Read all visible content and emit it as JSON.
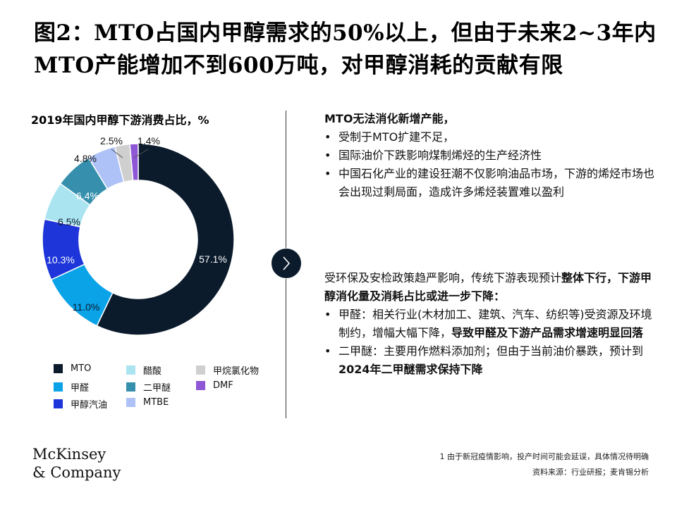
{
  "title": "图2：MTO占国内甲醇需求的50%以上，但由于未来2~3年内MTO产能增加不到600万吨，对甲醇消耗的贡献有限",
  "chart_data": {
    "type": "pie",
    "title": "2019年国内甲醇下游消费占比，%",
    "donut": true,
    "slices": [
      {
        "name": "MTO",
        "value": 57.1,
        "label": "57.1%",
        "color": "#0b1b2c"
      },
      {
        "name": "甲醛",
        "value": 11.0,
        "label": "11.0%",
        "color": "#0aa3e8"
      },
      {
        "name": "甲醇汽油",
        "value": 10.3,
        "label": "10.3%",
        "color": "#1d35d9"
      },
      {
        "name": "醋酸",
        "value": 6.5,
        "label": "6.5%",
        "color": "#a9e4f0"
      },
      {
        "name": "二甲醚",
        "value": 6.4,
        "label": "6.4%",
        "color": "#3690ad"
      },
      {
        "name": "MTBE",
        "value": 4.8,
        "label": "4.8%",
        "color": "#aec2f8"
      },
      {
        "name": "甲烷氯化物",
        "value": 2.5,
        "label": "2.5%",
        "color": "#cfcfcf"
      },
      {
        "name": "DMF",
        "value": 1.4,
        "label": "1.4%",
        "color": "#8e57d6"
      }
    ],
    "legend": [
      {
        "name": "MTO",
        "color": "#0b1b2c"
      },
      {
        "name": "醋酸",
        "color": "#a9e4f0"
      },
      {
        "name": "甲烷氯化物",
        "color": "#cfcfcf"
      },
      {
        "name": "甲醛",
        "color": "#0aa3e8"
      },
      {
        "name": "二甲醚",
        "color": "#3690ad"
      },
      {
        "name": "DMF",
        "color": "#8e57d6"
      },
      {
        "name": "甲醇汽油",
        "color": "#1d35d9"
      },
      {
        "name": "MTBE",
        "color": "#aec2f8"
      }
    ],
    "legend_placement": "bottom"
  },
  "right": {
    "block1": {
      "heading": "MTO无法消化新增产能，",
      "bullets": [
        "受制于MTO扩建不足，",
        "国际油价下跌影响煤制烯烃的生产经济性",
        "中国石化产业的建设狂潮不仅影响油品市场，下游的烯烃市场也会出现过剩局面，造成许多烯烃装置难以盈利"
      ]
    },
    "block2": {
      "intro_plain": "受环保及安检政策趋严影响，传统下游表现预计",
      "intro_bold": "整体下行，下游甲醇消化量及消耗占比或进一步下降：",
      "b1_plain": "甲醛：相关行业(木材加工、建筑、汽车、纺织等)受资源及环境制约，增幅大幅下降，",
      "b1_bold": "导致甲醛及下游产品需求增速明显回落",
      "b2_plain": "二甲醚：主要用作燃料添加剂；但由于当前油价暴跌，预计到",
      "b2_bold": "2024年二甲醚需求保持下降"
    }
  },
  "footnote": {
    "line1": "1 由于新冠疫情影响，投产时间可能会延误，具体情况待明确",
    "line2": "资料来源：行业研报；麦肯锡分析"
  },
  "logo": {
    "line1": "McKinsey",
    "line2": "& Company"
  },
  "icons": {
    "arrow": "chevron-right-icon"
  }
}
